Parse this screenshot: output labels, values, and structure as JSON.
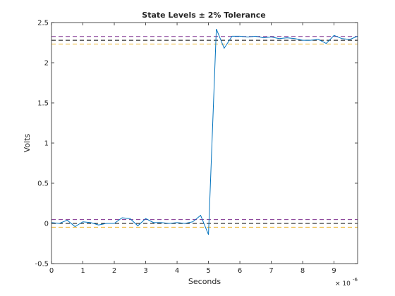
{
  "chart_data": {
    "type": "line",
    "title": "State Levels ± 2% Tolerance",
    "xlabel": "Seconds",
    "ylabel": "Volts",
    "x_exponent_label": "× 10",
    "x_exponent": "-6",
    "xlim": [
      0,
      9.75
    ],
    "ylim": [
      -0.5,
      2.5
    ],
    "xticks": [
      0,
      1,
      2,
      3,
      4,
      5,
      6,
      7,
      8,
      9
    ],
    "xtick_labels": [
      "0",
      "1",
      "2",
      "3",
      "4",
      "5",
      "6",
      "7",
      "8",
      "9"
    ],
    "yticks": [
      -0.5,
      0,
      0.5,
      1,
      1.5,
      2,
      2.5
    ],
    "ytick_labels": [
      "-0.5",
      "0",
      "0.5",
      "1",
      "1.5",
      "2",
      "2.5"
    ],
    "grid": false,
    "colors": {
      "signal": "#0072BD",
      "mid_level": "#000000",
      "upper_bound": "#7E2F8E",
      "lower_bound": "#EDB120"
    },
    "levels": [
      {
        "role": "low",
        "value": 0.0,
        "upper": 0.047,
        "lower": -0.047
      },
      {
        "role": "high",
        "value": 2.28,
        "upper": 2.327,
        "lower": 2.233
      }
    ],
    "series": [
      {
        "x": [
          0,
          0.25,
          0.5,
          0.75,
          1.0,
          1.25,
          1.5,
          1.75,
          2.0,
          2.25,
          2.5,
          2.75,
          3.0,
          3.25,
          3.5,
          3.75,
          4.0,
          4.25,
          4.5,
          4.75,
          5.0,
          5.25,
          5.5,
          5.75,
          6.0,
          6.25,
          6.5,
          6.75,
          7.0,
          7.25,
          7.5,
          7.75,
          8.0,
          8.25,
          8.5,
          8.75,
          9.0,
          9.25,
          9.5,
          9.75
        ],
        "y": [
          0.01,
          0.0,
          0.04,
          -0.04,
          0.02,
          0.01,
          -0.02,
          0.0,
          0.0,
          0.07,
          0.06,
          -0.03,
          0.06,
          0.01,
          0.01,
          0.0,
          0.01,
          0.0,
          0.02,
          0.1,
          -0.14,
          2.42,
          2.18,
          2.33,
          2.33,
          2.32,
          2.33,
          2.31,
          2.32,
          2.3,
          2.31,
          2.3,
          2.28,
          2.28,
          2.29,
          2.24,
          2.34,
          2.3,
          2.29,
          2.33
        ]
      }
    ]
  }
}
